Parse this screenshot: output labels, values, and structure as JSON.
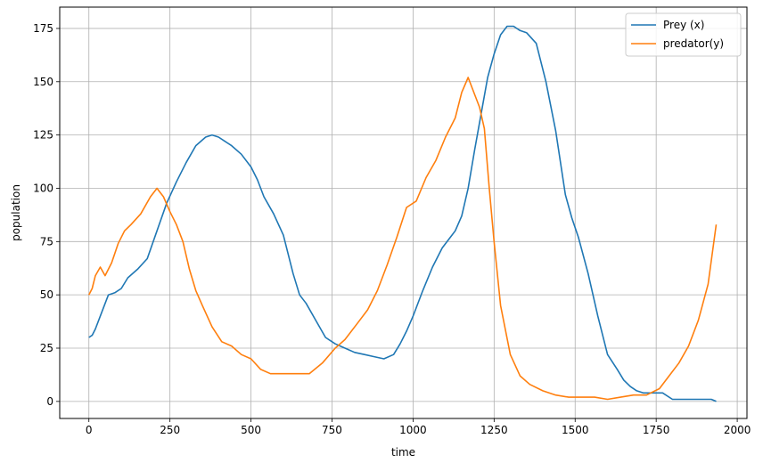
{
  "chart_data": {
    "type": "line",
    "title": "",
    "xlabel": "time",
    "ylabel": "population",
    "xlim": [
      -90,
      2030
    ],
    "ylim": [
      -8,
      185
    ],
    "x_ticks": [
      0,
      250,
      500,
      750,
      1000,
      1250,
      1500,
      1750,
      2000
    ],
    "y_ticks": [
      0,
      25,
      50,
      75,
      100,
      125,
      150,
      175
    ],
    "x_tick_labels": [
      "0",
      "250",
      "500",
      "750",
      "1000",
      "1250",
      "1500",
      "1750",
      "2000"
    ],
    "y_tick_labels": [
      "0",
      "25",
      "50",
      "75",
      "100",
      "125",
      "150",
      "175"
    ],
    "grid": true,
    "legend_position": "top-right",
    "series": [
      {
        "name": "Prey (x)",
        "color": "#1f77b4",
        "x": [
          0,
          10,
          20,
          40,
          60,
          80,
          100,
          120,
          150,
          180,
          210,
          240,
          270,
          300,
          330,
          360,
          380,
          400,
          420,
          440,
          470,
          500,
          520,
          540,
          570,
          600,
          630,
          650,
          670,
          700,
          730,
          760,
          790,
          820,
          850,
          880,
          910,
          940,
          960,
          980,
          1000,
          1030,
          1060,
          1090,
          1110,
          1130,
          1150,
          1170,
          1190,
          1210,
          1230,
          1250,
          1270,
          1290,
          1310,
          1330,
          1350,
          1380,
          1410,
          1440,
          1470,
          1490,
          1510,
          1540,
          1570,
          1600,
          1630,
          1650,
          1670,
          1690,
          1710,
          1740,
          1770,
          1800,
          1830,
          1860,
          1890,
          1920,
          1935
        ],
        "values": [
          30,
          31,
          34,
          42,
          50,
          51,
          53,
          58,
          62,
          67,
          80,
          93,
          103,
          112,
          120,
          124,
          125,
          124,
          122,
          120,
          116,
          110,
          104,
          96,
          88,
          78,
          60,
          50,
          46,
          38,
          30,
          27,
          25,
          23,
          22,
          21,
          20,
          22,
          27,
          33,
          40,
          52,
          63,
          72,
          76,
          80,
          87,
          100,
          118,
          135,
          152,
          163,
          172,
          176,
          176,
          174,
          173,
          168,
          150,
          127,
          97,
          86,
          77,
          60,
          40,
          22,
          15,
          10,
          7,
          5,
          4,
          4,
          4,
          1,
          1,
          1,
          1,
          1,
          0
        ]
      },
      {
        "name": "predator(y)",
        "color": "#ff7f0e",
        "x": [
          0,
          10,
          20,
          35,
          50,
          70,
          90,
          110,
          130,
          160,
          190,
          210,
          230,
          250,
          270,
          290,
          310,
          330,
          350,
          380,
          410,
          440,
          470,
          500,
          530,
          560,
          600,
          640,
          680,
          720,
          760,
          790,
          830,
          860,
          890,
          920,
          950,
          980,
          1010,
          1040,
          1070,
          1100,
          1130,
          1150,
          1170,
          1190,
          1205,
          1220,
          1235,
          1250,
          1270,
          1300,
          1330,
          1360,
          1400,
          1440,
          1480,
          1520,
          1560,
          1600,
          1640,
          1680,
          1720,
          1760,
          1790,
          1820,
          1850,
          1880,
          1910,
          1935
        ],
        "values": [
          50,
          53,
          59,
          63,
          59,
          65,
          74,
          80,
          83,
          88,
          96,
          100,
          96,
          89,
          83,
          75,
          62,
          52,
          45,
          35,
          28,
          26,
          22,
          20,
          15,
          13,
          13,
          13,
          13,
          18,
          25,
          29,
          37,
          43,
          52,
          64,
          77,
          91,
          94,
          105,
          113,
          124,
          133,
          145,
          152,
          144,
          138,
          128,
          100,
          75,
          45,
          22,
          12,
          8,
          5,
          3,
          2,
          2,
          2,
          1,
          2,
          3,
          3,
          6,
          12,
          18,
          26,
          38,
          55,
          83
        ]
      }
    ]
  }
}
